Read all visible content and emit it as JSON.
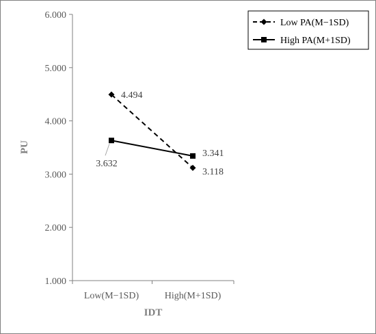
{
  "chart_data": {
    "type": "line",
    "title": "",
    "xlabel": "IDT",
    "ylabel": "PU",
    "categories": [
      "Low(M−1SD)",
      "High(M+1SD)"
    ],
    "ylim": [
      1.0,
      6.0
    ],
    "yticks": [
      1.0,
      2.0,
      3.0,
      4.0,
      5.0,
      6.0
    ],
    "ytick_labels": [
      "1.000",
      "2.000",
      "3.000",
      "4.000",
      "5.000",
      "6.000"
    ],
    "grid": false,
    "legend_position": "top-right",
    "series": [
      {
        "name": "Low PA(M−1SD)",
        "values": [
          4.494,
          3.118
        ],
        "labels": [
          "4.494",
          "3.118"
        ],
        "line_style": "dashed",
        "marker": "diamond",
        "color": "#000000"
      },
      {
        "name": "High PA(M+1SD)",
        "values": [
          3.632,
          3.341
        ],
        "labels": [
          "3.632",
          "3.341"
        ],
        "line_style": "solid",
        "marker": "square",
        "color": "#000000"
      }
    ]
  }
}
